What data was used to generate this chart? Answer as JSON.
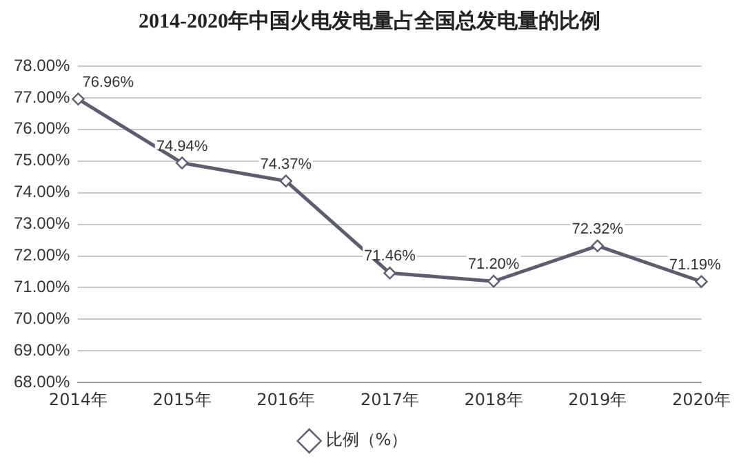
{
  "chart_data": {
    "type": "line",
    "title": "2014-2020年中国火电发电量占全国总发电量的比例",
    "categories": [
      "2014年",
      "2015年",
      "2016年",
      "2017年",
      "2018年",
      "2019年",
      "2020年"
    ],
    "series": [
      {
        "name": "比例（%）",
        "color": "#5b5e72",
        "values": [
          76.96,
          74.94,
          74.37,
          71.46,
          71.2,
          72.32,
          71.19
        ],
        "value_labels": [
          "76.96%",
          "74.94%",
          "74.37%",
          "71.46%",
          "71.20%",
          "72.32%",
          "71.19%"
        ]
      }
    ],
    "ylim": [
      68,
      78
    ],
    "yticks": [
      {
        "value": 68,
        "label": "68.00%"
      },
      {
        "value": 69,
        "label": "69.00%"
      },
      {
        "value": 70,
        "label": "70.00%"
      },
      {
        "value": 71,
        "label": "71.00%"
      },
      {
        "value": 72,
        "label": "72.00%"
      },
      {
        "value": 73,
        "label": "73.00%"
      },
      {
        "value": 74,
        "label": "74.00%"
      },
      {
        "value": 75,
        "label": "75.00%"
      },
      {
        "value": 76,
        "label": "76.00%"
      },
      {
        "value": 77,
        "label": "77.00%"
      },
      {
        "value": 78,
        "label": "78.00%"
      }
    ],
    "grid": "y",
    "legend": "bottom",
    "marker": "diamond",
    "line_style": "solid"
  }
}
